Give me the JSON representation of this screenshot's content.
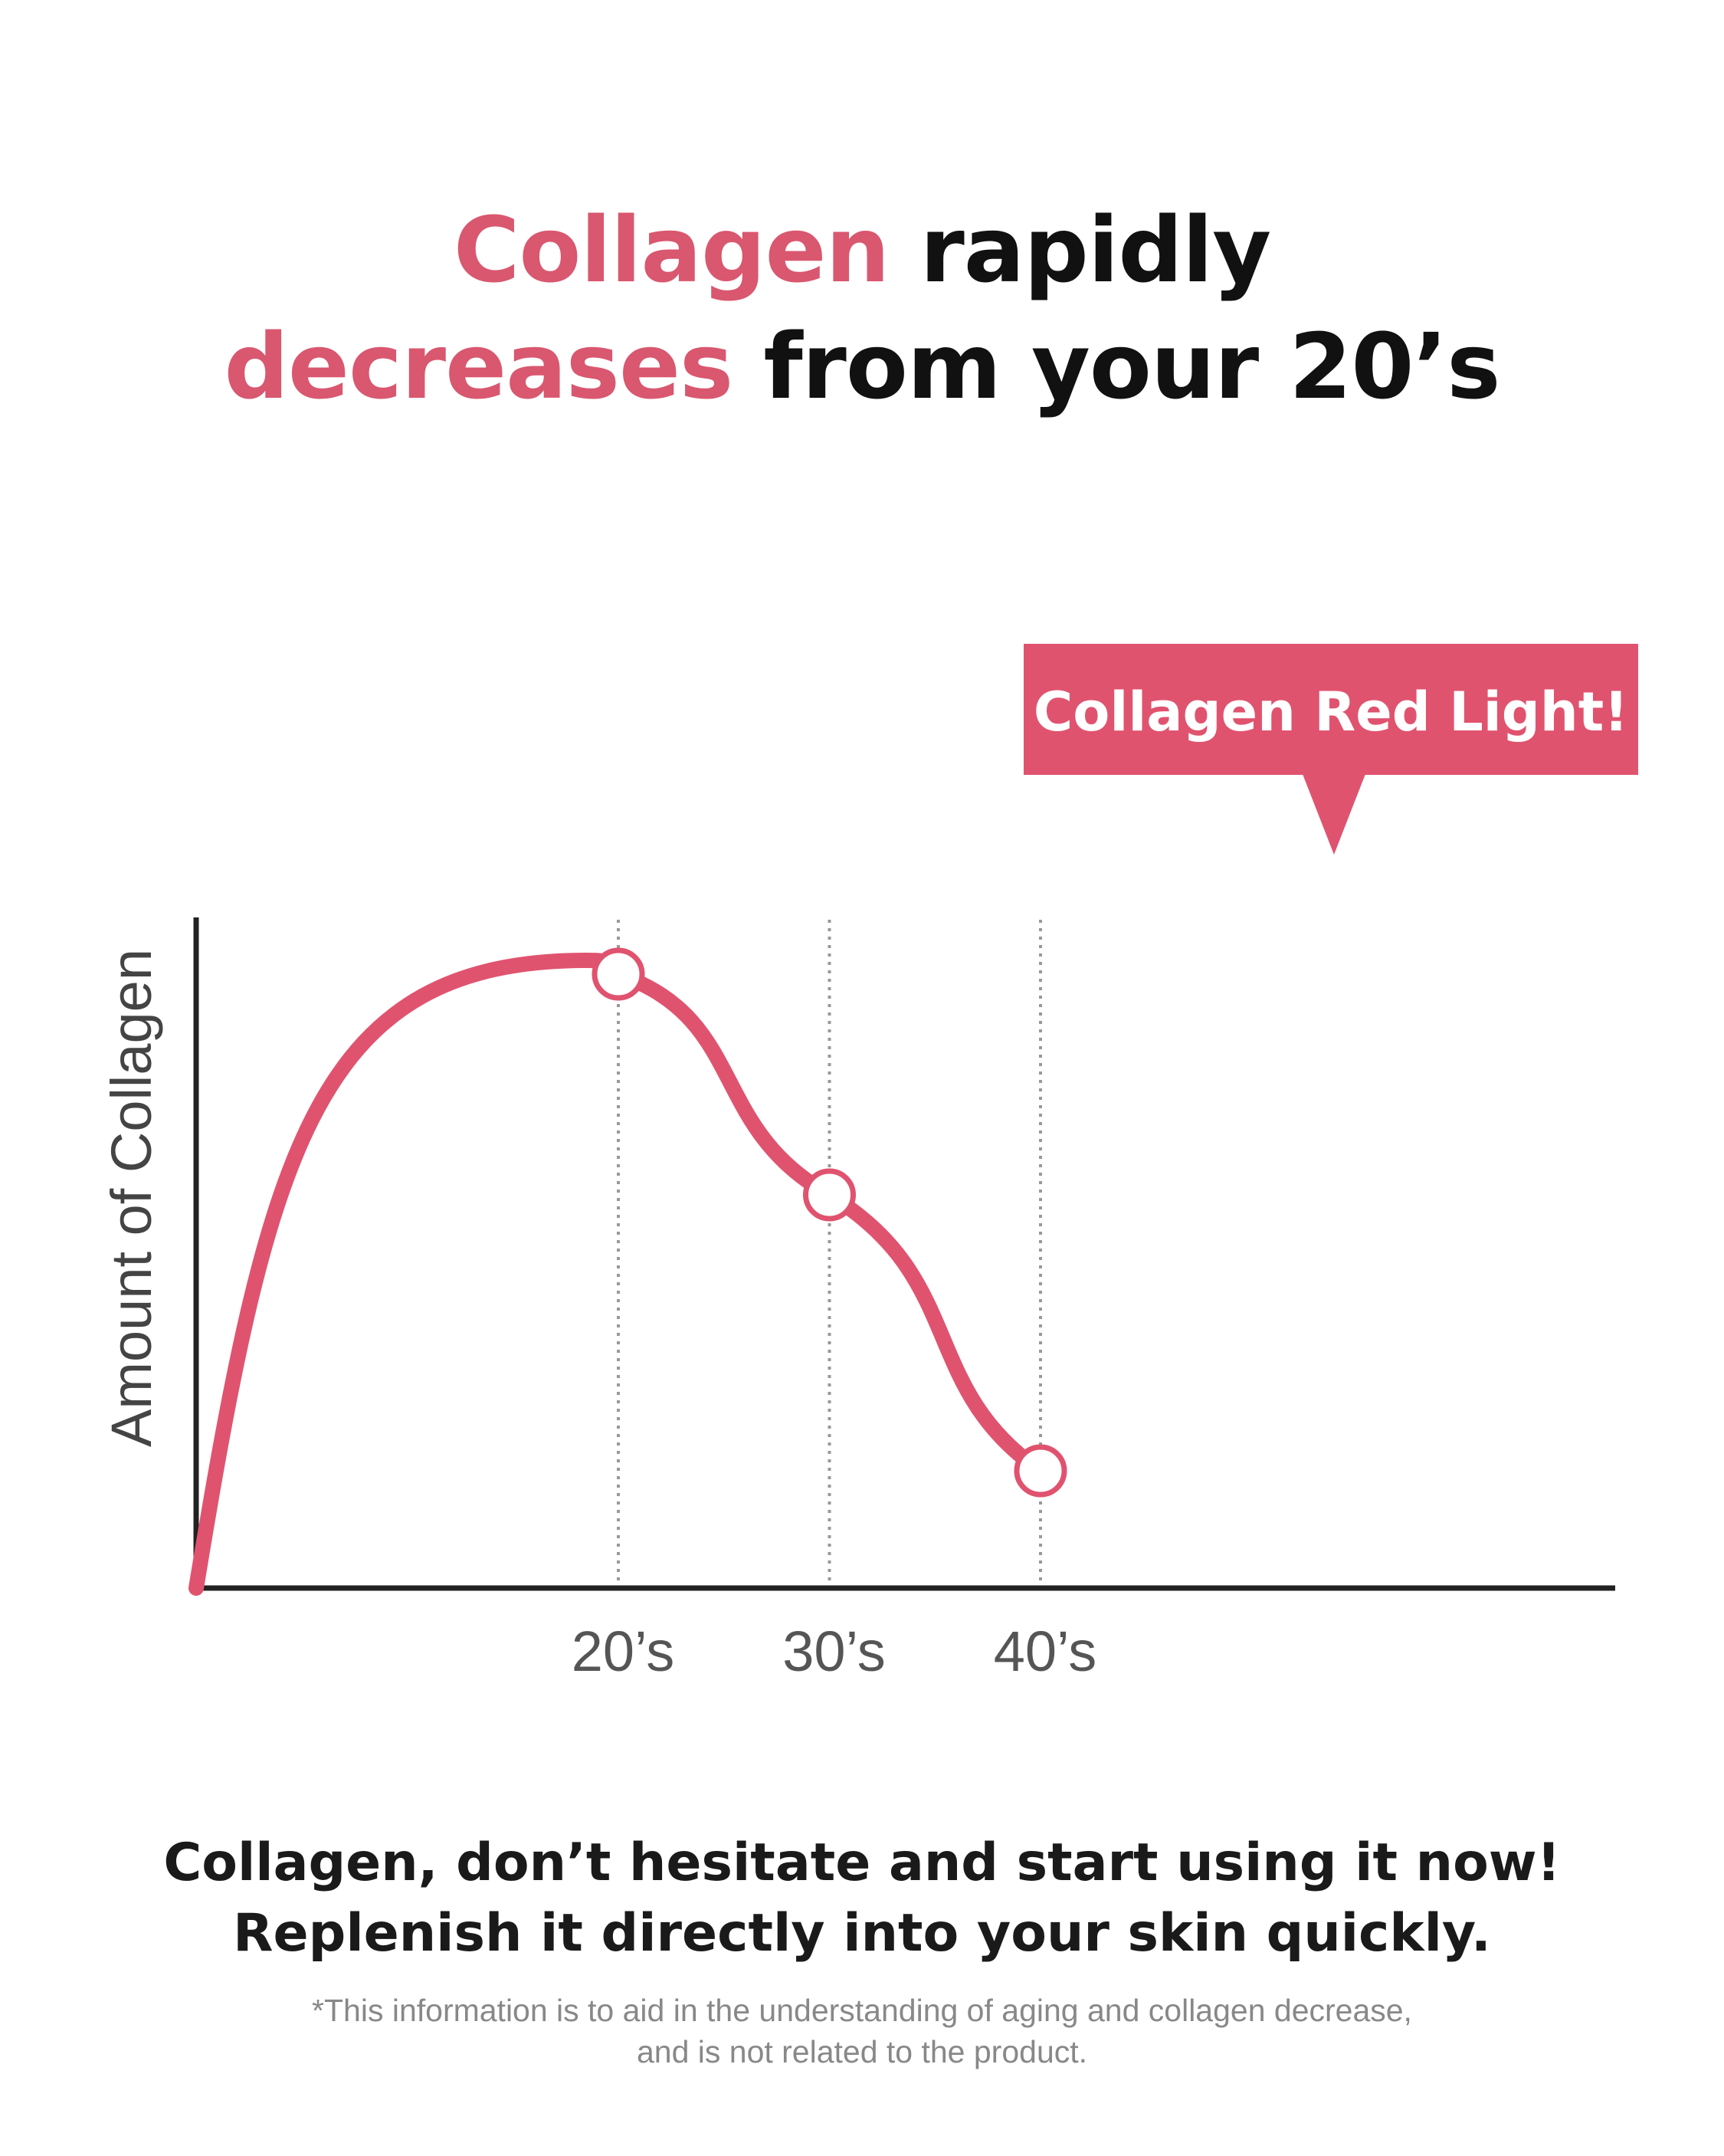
{
  "headline": {
    "line1_accent": "Collagen",
    "line1_rest": " rapidly",
    "line2_accent": "decreases",
    "line2_rest": " from your 20’s"
  },
  "callout": {
    "label": "Collagen Red Light!"
  },
  "footer": {
    "line1": "Collagen, don’t hesitate and start using it now!",
    "line2": "Replenish it directly into your skin quickly."
  },
  "disclaimer": {
    "line1": "*This information is to aid in the understanding of aging and collagen decrease,",
    "line2": "and is not related to the product."
  },
  "colors": {
    "accent": "#d9576f",
    "curve": "#e0536f",
    "callout_bg": "#e0536f",
    "axis": "#222222",
    "gridline": "#999999"
  },
  "chart_data": {
    "type": "line",
    "title": "",
    "xlabel": "",
    "ylabel": "Amount of Collagen",
    "categories": [
      "20’s",
      "30’s",
      "40’s"
    ],
    "x": [
      0,
      20,
      30,
      40
    ],
    "xlim": [
      0,
      44
    ],
    "ylim": [
      0,
      100
    ],
    "curve_peak": {
      "x": 18.5,
      "y": 91
    },
    "series": [
      {
        "values": [
          0,
          89,
          57,
          17
        ],
        "marked_points": [
          {
            "category": "20’s",
            "x": 20,
            "y": 89
          },
          {
            "category": "30’s",
            "x": 30,
            "y": 57
          },
          {
            "category": "40’s",
            "x": 40,
            "y": 17
          }
        ]
      }
    ],
    "vertical_gridlines": "dotted at 20’s, 30’s, 40’s",
    "y_tick_labels": false,
    "legend": "none",
    "callout_target": "between 30’s and 40’s"
  }
}
